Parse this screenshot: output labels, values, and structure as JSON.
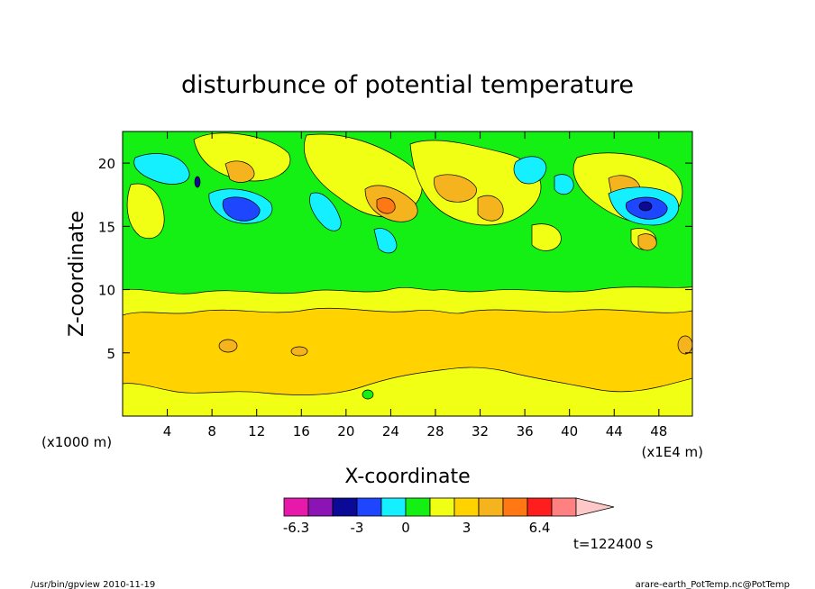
{
  "chart_data": {
    "type": "heatmap",
    "title": "disturbunce of potential temperature",
    "xlabel": "X-coordinate",
    "ylabel": "Z-coordinate",
    "x_unit_label": "(x1E4 m)",
    "y_unit_label": "(x1000 m)",
    "xlim": [
      0,
      51
    ],
    "ylim": [
      0,
      22.5
    ],
    "x_ticks": [
      "4",
      "8",
      "12",
      "16",
      "20",
      "24",
      "28",
      "32",
      "36",
      "40",
      "44",
      "48"
    ],
    "y_ticks": [
      "5",
      "10",
      "15",
      "20"
    ],
    "colorbar": {
      "tick_labels": [
        "-6.3",
        "-3",
        "0",
        "3",
        "6.4"
      ],
      "colors": [
        "#e619aa",
        "#8c14b4",
        "#0a0a96",
        "#1e46ff",
        "#14f0ff",
        "#14f014",
        "#f0ff14",
        "#ffd200",
        "#f5b41e",
        "#ff7814",
        "#ff1e1e",
        "#ff8080",
        "#ffc8c8"
      ]
    },
    "grid": false,
    "time_label": "t=122400 s"
  },
  "footer": {
    "left": "/usr/bin/gpview   2010-11-19",
    "right": "arare-earth_PotTemp.nc@PotTemp"
  }
}
